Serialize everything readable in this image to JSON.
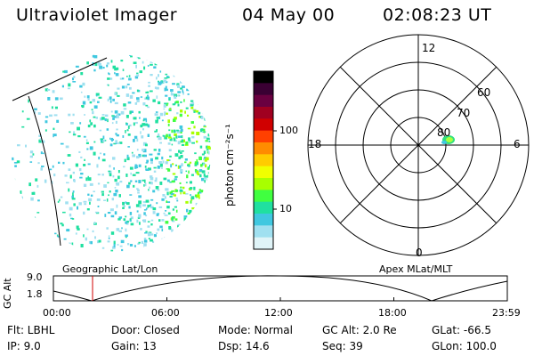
{
  "header": {
    "title": "Ultraviolet Imager",
    "date": "04 May 00",
    "time": "02:08:23 UT"
  },
  "colorbar": {
    "label": "photon cm⁻²s⁻¹",
    "ticks": [
      "100",
      "10"
    ],
    "colors": [
      "#000000",
      "#3a0033",
      "#6a0040",
      "#a00020",
      "#d00000",
      "#ff4000",
      "#ff8c00",
      "#ffcc00",
      "#f0ff00",
      "#a8ff00",
      "#40ff40",
      "#20e0a0",
      "#40c8e0",
      "#a0e0f0",
      "#e0f4f8"
    ]
  },
  "image_panel": {
    "label": "Geographic Lat/Lon"
  },
  "polar_plot": {
    "label": "Apex MLat/MLT",
    "mlt_labels": {
      "top": "12",
      "left": "18",
      "right": "6",
      "bottom": "0"
    },
    "lat_labels": [
      "60",
      "70",
      "80"
    ]
  },
  "altitude_plot": {
    "ylabel": "GC Alt",
    "yticks": [
      "9.0",
      "1.8"
    ],
    "xticks": [
      "00:00",
      "06:00",
      "12:00",
      "18:00",
      "23:59"
    ]
  },
  "info": {
    "flt": "Flt: LBHL",
    "ip": "IP:  9.0",
    "door": "Door: Closed",
    "gain": "Gain: 13",
    "mode": "Mode: Normal",
    "dsp": "Dsp:   14.6",
    "gcalt": "GC Alt: 2.0 Re",
    "seq": "Seq: 39",
    "glat": "GLat: -66.5",
    "glon": "GLon: 100.0"
  }
}
